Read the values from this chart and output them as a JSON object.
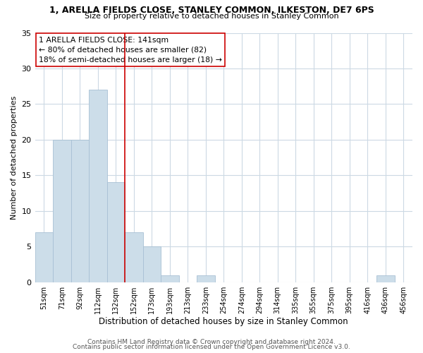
{
  "title": "1, ARELLA FIELDS CLOSE, STANLEY COMMON, ILKESTON, DE7 6PS",
  "subtitle": "Size of property relative to detached houses in Stanley Common",
  "xlabel": "Distribution of detached houses by size in Stanley Common",
  "ylabel": "Number of detached properties",
  "bar_labels": [
    "51sqm",
    "71sqm",
    "92sqm",
    "112sqm",
    "132sqm",
    "152sqm",
    "173sqm",
    "193sqm",
    "213sqm",
    "233sqm",
    "254sqm",
    "274sqm",
    "294sqm",
    "314sqm",
    "335sqm",
    "355sqm",
    "375sqm",
    "395sqm",
    "416sqm",
    "436sqm",
    "456sqm"
  ],
  "bar_values": [
    7,
    20,
    20,
    27,
    14,
    7,
    5,
    1,
    0,
    1,
    0,
    0,
    0,
    0,
    0,
    0,
    0,
    0,
    0,
    1,
    0
  ],
  "bar_color": "#ccdde9",
  "bar_edge_color": "#a8c0d4",
  "vline_x_idx": 4,
  "vline_color": "#cc0000",
  "annotation_title": "1 ARELLA FIELDS CLOSE: 141sqm",
  "annotation_line1": "← 80% of detached houses are smaller (82)",
  "annotation_line2": "18% of semi-detached houses are larger (18) →",
  "annotation_box_color": "#ffffff",
  "annotation_box_edge": "#cc0000",
  "ylim": [
    0,
    35
  ],
  "yticks": [
    0,
    5,
    10,
    15,
    20,
    25,
    30,
    35
  ],
  "footer1": "Contains HM Land Registry data © Crown copyright and database right 2024.",
  "footer2": "Contains public sector information licensed under the Open Government Licence v3.0.",
  "bg_color": "#ffffff",
  "grid_color": "#ccd9e4"
}
